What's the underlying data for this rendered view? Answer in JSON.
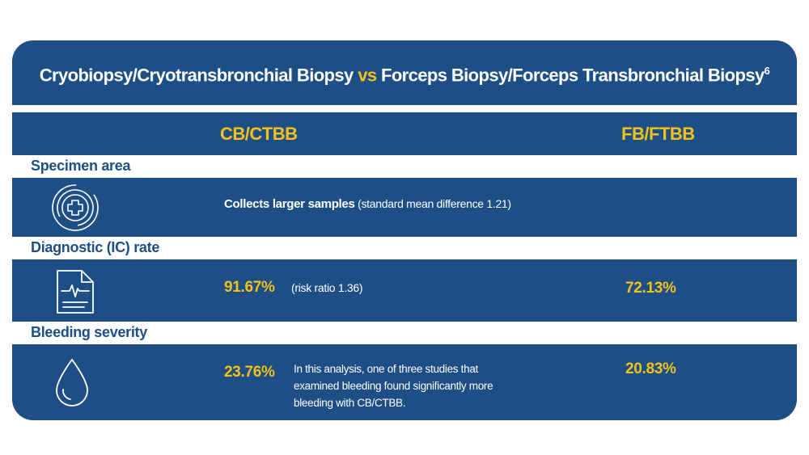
{
  "title": {
    "part1": "Cryobiopsy/Cryotransbronchial Biopsy",
    "vs": "vs",
    "part2": "Forceps Biopsy/Forceps Transbronchial Biopsy",
    "ref": "6"
  },
  "columns": {
    "cb": "CB/CTBB",
    "fb": "FB/FTBB"
  },
  "rows": {
    "specimen": {
      "label": "Specimen area",
      "icon": "medical-target-icon",
      "cb_bold": "Collects larger samples",
      "cb_note": "(standard mean difference 1.21)"
    },
    "diagnostic": {
      "label": "Diagnostic (IC) rate",
      "icon": "medical-report-icon",
      "cb_value": "91.67%",
      "cb_note": "(risk ratio 1.36)",
      "fb_value": "72.13%"
    },
    "bleeding": {
      "label": "Bleeding severity",
      "icon": "blood-drop-icon",
      "cb_value": "23.76%",
      "cb_note": "In this analysis, one of three studies that examined bleeding found significantly more bleeding with CB/CTBB.",
      "fb_value": "20.83%"
    }
  },
  "colors": {
    "navy": "#1e4e86",
    "gold": "#f2c21b",
    "white": "#ffffff"
  }
}
